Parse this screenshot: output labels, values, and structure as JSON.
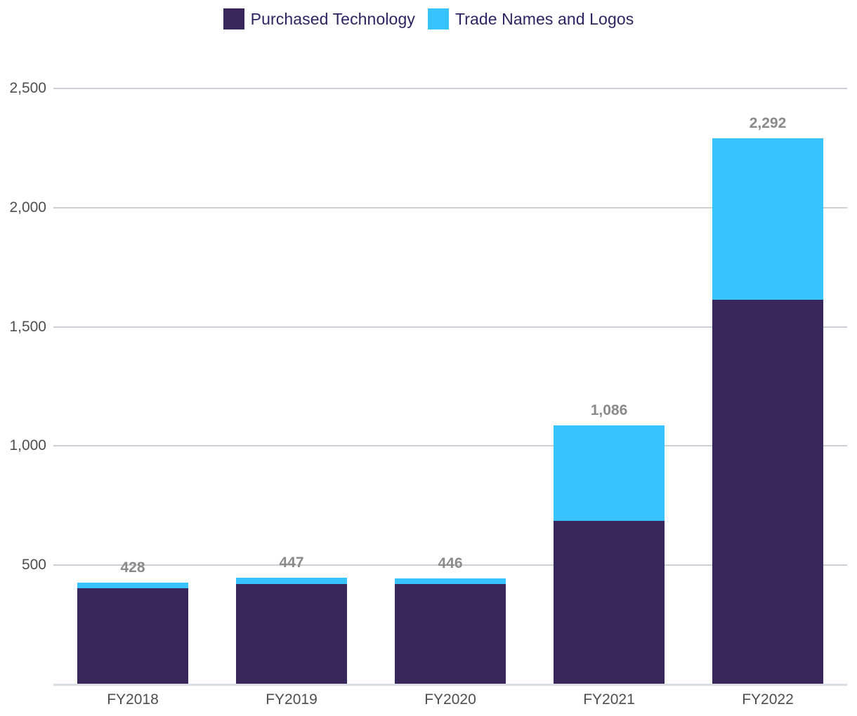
{
  "legend": {
    "items": [
      {
        "label": "Purchased Technology",
        "swatch": "purple-swatch"
      },
      {
        "label": "Trade Names and Logos",
        "swatch": "cyan-swatch"
      }
    ]
  },
  "chart_data": {
    "type": "bar",
    "stacked": true,
    "title": "",
    "xlabel": "",
    "ylabel": "",
    "categories": [
      "FY2018",
      "FY2019",
      "FY2020",
      "FY2021",
      "FY2022"
    ],
    "series": [
      {
        "name": "Purchased Technology",
        "color": "#39275B",
        "values": [
          403,
          420,
          420,
          687,
          1614
        ]
      },
      {
        "name": "Trade Names and Logos",
        "color": "#38C3FC",
        "values": [
          25,
          27,
          26,
          399,
          678
        ]
      }
    ],
    "totals": [
      428,
      447,
      446,
      1086,
      2292
    ],
    "total_labels": [
      "428",
      "447",
      "446",
      "1,086",
      "2,292"
    ],
    "y_ticks": [
      500,
      1000,
      1500,
      2000,
      2500
    ],
    "y_tick_labels": [
      "500",
      "1,000",
      "1,500",
      "2,000",
      "2,500"
    ],
    "ylim": [
      0,
      2500
    ],
    "grid": true,
    "legend_position": "top"
  },
  "colors": {
    "purple": "#39275B",
    "cyan": "#38C3FC",
    "legend_text": "#2D2462",
    "grid_line": "#CBD0D8",
    "base_line": "#D9DEE4",
    "tick_text": "#4D4E50",
    "data_label_text": "#8A8A8A",
    "background": "#FFFFFF"
  }
}
